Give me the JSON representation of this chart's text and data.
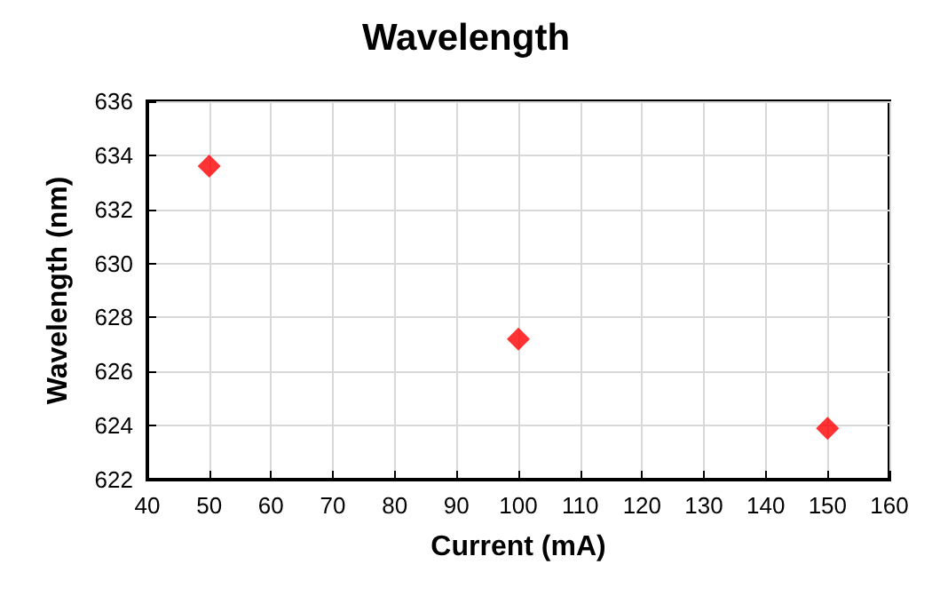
{
  "chart_data": {
    "type": "scatter",
    "title": "Wavelength",
    "xlabel": "Current (mA)",
    "ylabel": "Wavelength (nm)",
    "x": [
      50,
      100,
      150
    ],
    "series": [
      {
        "color": "#ff0000",
        "values": [
          633.6,
          627.2,
          623.9
        ]
      }
    ],
    "xlim": [
      40,
      160
    ],
    "xticks": [
      40,
      50,
      60,
      70,
      80,
      90,
      100,
      110,
      120,
      130,
      140,
      150,
      160
    ],
    "ylim": [
      622,
      636
    ],
    "yticks": [
      622,
      624,
      626,
      628,
      630,
      632,
      634,
      636
    ],
    "grid": true,
    "marker": "diamond"
  }
}
